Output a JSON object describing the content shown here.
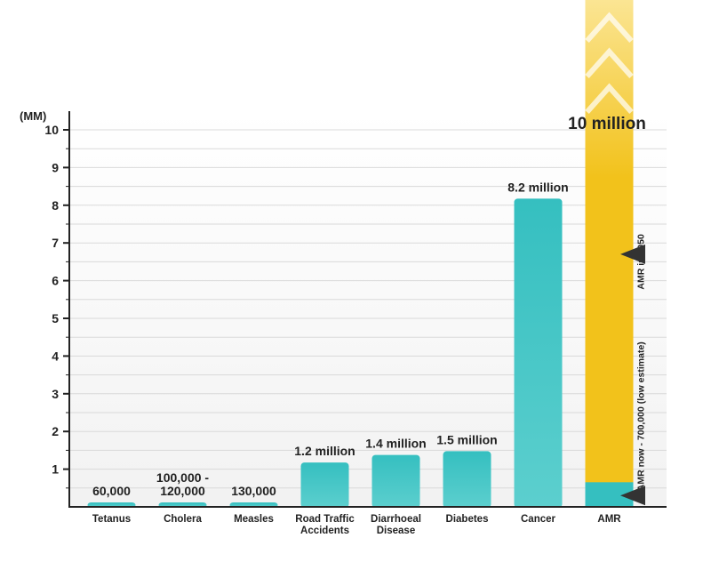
{
  "chart_data": {
    "type": "bar",
    "y_unit_label": "(MM)",
    "ylim": [
      0,
      10
    ],
    "y_ticks": [
      "1",
      "2",
      "3",
      "4",
      "5",
      "6",
      "7",
      "8",
      "9",
      "10"
    ],
    "grid": true,
    "categories": [
      {
        "label": [
          "Tetanus"
        ],
        "value": 0.06,
        "value_label": [
          "60,000"
        ]
      },
      {
        "label": [
          "Cholera"
        ],
        "value": 0.12,
        "value_label": [
          "100,000 -",
          "120,000"
        ]
      },
      {
        "label": [
          "Measles"
        ],
        "value": 0.13,
        "value_label": [
          "130,000"
        ]
      },
      {
        "label": [
          "Road Traffic",
          "Accidents"
        ],
        "value": 1.2,
        "value_label": [
          "1.2 million"
        ]
      },
      {
        "label": [
          "Diarrhoeal",
          "Disease"
        ],
        "value": 1.4,
        "value_label": [
          "1.4 million"
        ]
      },
      {
        "label": [
          "Diabetes"
        ],
        "value": 1.5,
        "value_label": [
          "1.5 million"
        ]
      },
      {
        "label": [
          "Cancer"
        ],
        "value": 8.2,
        "value_label": [
          "8.2 million"
        ]
      },
      {
        "label": [
          "AMR"
        ],
        "value": 0.7,
        "value_label": []
      }
    ],
    "amr_projection": {
      "value": 10,
      "value_label": "10 million",
      "annotation_now": "AMR now - 700,000 (low estimate)",
      "annotation_2050": "AMR in 2050"
    },
    "colors": {
      "bar": "#35bfc0",
      "bar_light": "#5ccfce",
      "projection": "#f2c21b",
      "projection_light": "#fbe593",
      "axis": "#222222",
      "grid": "#d9d9d9",
      "plot_bg": "#f2f2f2",
      "text": "#222222",
      "arrow": "#333333"
    }
  }
}
